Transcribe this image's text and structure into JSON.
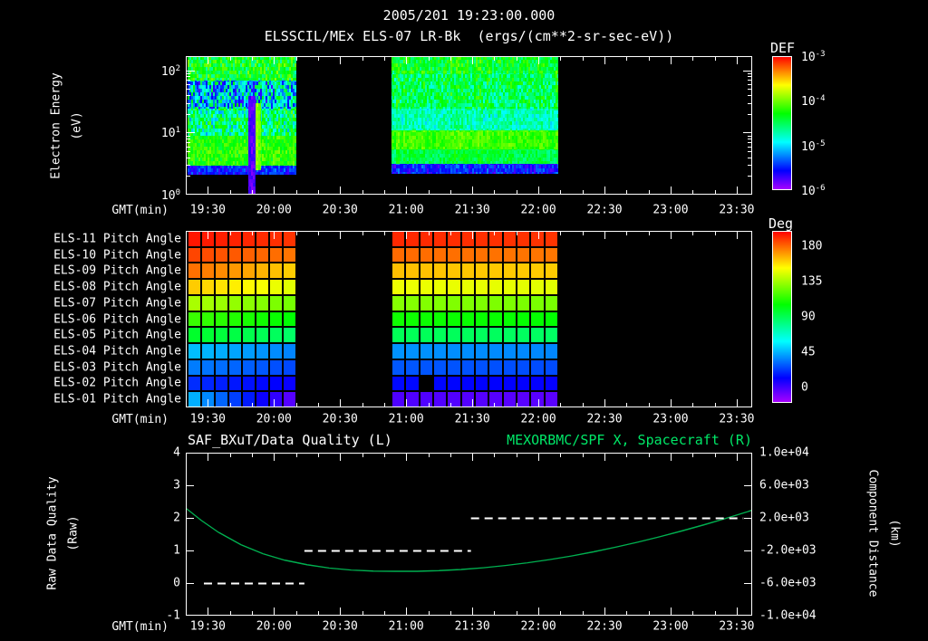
{
  "header": {
    "timestamp": "2005/201 19:23:00.000",
    "plot_title": "ELSSCIL/MEx ELS-07 LR-Bk  (ergs/(cm**2-sr-sec-eV))"
  },
  "colors": {
    "background": "#000000",
    "text": "#ffffff",
    "title_green": "#00e868",
    "curve_green": "#00b050",
    "quality_dash": "#ffffff",
    "axis": "#ffffff"
  },
  "x_axis": {
    "label": "GMT(min)",
    "tick_labels": [
      "19:30",
      "20:00",
      "20:30",
      "21:00",
      "21:30",
      "22:00",
      "22:30",
      "23:00",
      "23:30"
    ],
    "tick_hours": [
      19.5,
      20.0,
      20.5,
      21.0,
      21.5,
      22.0,
      22.5,
      23.0,
      23.5
    ],
    "range_hours": [
      19.333,
      23.617
    ]
  },
  "chart_data": [
    {
      "type": "heatmap",
      "name": "electron-energy-spectrogram",
      "ylabel_lines": [
        "Electron Energy",
        "(eV)"
      ],
      "y_scale": "log",
      "y_range_ev": [
        1,
        170
      ],
      "y_tick_exponents": [
        2,
        1,
        0
      ],
      "colorbar": {
        "label": "DEF",
        "tick_exponents": [
          -3,
          -4,
          -5,
          -6
        ],
        "units": "ergs/(cm**2-sr-sec-eV)"
      },
      "blocks": [
        {
          "t_start": 19.35,
          "t_end": 20.17,
          "bands": [
            {
              "e_min": 70,
              "e_max": 170,
              "v": 0.56,
              "noise": 0.13
            },
            {
              "e_min": 25,
              "e_max": 70,
              "v": 0.33,
              "noise": 0.24
            },
            {
              "e_min": 9,
              "e_max": 25,
              "v": 0.47,
              "noise": 0.18
            },
            {
              "e_min": 3.0,
              "e_max": 9,
              "v": 0.6,
              "noise": 0.07
            },
            {
              "e_min": 2.1,
              "e_max": 3.0,
              "v": 0.17,
              "noise": 0.08
            }
          ],
          "features": [
            {
              "type": "dark_column",
              "t0": 19.8,
              "t1": 19.86,
              "e_min": 1,
              "e_max": 40,
              "v": 0.07
            },
            {
              "type": "bright_column",
              "t0": 19.86,
              "t1": 19.9,
              "e_min": 2.5,
              "e_max": 30,
              "v": 0.67
            }
          ]
        },
        {
          "t_start": 20.89,
          "t_end": 22.15,
          "bands": [
            {
              "e_min": 90,
              "e_max": 170,
              "v": 0.55,
              "noise": 0.1
            },
            {
              "e_min": 25,
              "e_max": 90,
              "v": 0.5,
              "noise": 0.12
            },
            {
              "e_min": 11,
              "e_max": 25,
              "v": 0.42,
              "noise": 0.08
            },
            {
              "e_min": 5.5,
              "e_max": 11,
              "v": 0.62,
              "noise": 0.05
            },
            {
              "e_min": 3.2,
              "e_max": 5.5,
              "v": 0.52,
              "noise": 0.06
            },
            {
              "e_min": 2.2,
              "e_max": 3.2,
              "v": 0.16,
              "noise": 0.08
            }
          ],
          "features": []
        }
      ]
    },
    {
      "type": "heatmap",
      "name": "pitch-angle-panels",
      "colorbar": {
        "label": "Deg",
        "ticks": [
          180,
          135,
          90,
          45,
          0
        ],
        "range": [
          0,
          180
        ]
      },
      "cell_minutes": 6.5,
      "blocks": [
        {
          "t_start": 19.35,
          "t_end": 20.17
        },
        {
          "t_start": 20.89,
          "t_end": 22.15
        }
      ],
      "rows": [
        {
          "label": "ELS-11 Pitch Angle",
          "angles_block1": [
            177,
            172
          ],
          "angles_block2": [
            174,
            172
          ]
        },
        {
          "label": "ELS-10 Pitch Angle",
          "angles_block1": [
            170,
            162
          ],
          "angles_block2": [
            164,
            162
          ]
        },
        {
          "label": "ELS-09 Pitch Angle",
          "angles_block1": [
            164,
            148
          ],
          "angles_block2": [
            151,
            149
          ]
        },
        {
          "label": "ELS-08 Pitch Angle",
          "angles_block1": [
            150,
            136
          ],
          "angles_block2": [
            139,
            137
          ]
        },
        {
          "label": "ELS-07 Pitch Angle",
          "angles_block1": [
            129,
            120
          ],
          "angles_block2": [
            123,
            121
          ]
        },
        {
          "label": "ELS-06 Pitch Angle",
          "angles_block1": [
            112,
            102
          ],
          "angles_block2": [
            105,
            103
          ]
        },
        {
          "label": "ELS-05 Pitch Angle",
          "angles_block1": [
            97,
            87
          ],
          "angles_block2": [
            90,
            88
          ]
        },
        {
          "label": "ELS-04 Pitch Angle",
          "angles_block1": [
            55,
            45
          ],
          "angles_block2": [
            48,
            46
          ]
        },
        {
          "label": "ELS-03 Pitch Angle",
          "angles_block1": [
            45,
            36
          ],
          "angles_block2": [
            39,
            37
          ]
        },
        {
          "label": "ELS-02 Pitch Angle",
          "angles_block1": [
            33,
            24
          ],
          "angles_block2": [
            27,
            25
          ]
        },
        {
          "label": "ELS-01 Pitch Angle",
          "angles_block1": [
            55,
            10
          ],
          "angles_block2": [
            14,
            12
          ]
        }
      ],
      "missing_cells": [
        {
          "row_label": "ELS-02 Pitch Angle",
          "t_hours": 21.12
        }
      ]
    },
    {
      "type": "line",
      "name": "quality-and-spacecraft-distance",
      "title_left": "SAF_BXuT/Data Quality (L)",
      "title_right": "MEXORBMC/SPF X, Spacecraft (R)",
      "ylabel_left_lines": [
        "Raw Data Quality",
        "(Raw)"
      ],
      "ylabel_right_lines": [
        "Component Distance",
        "(km)"
      ],
      "y_left": {
        "ticks": [
          4,
          3,
          2,
          1,
          0,
          -1
        ],
        "range": [
          -1,
          4
        ]
      },
      "y_right": {
        "tick_labels": [
          "1.0e+04",
          "6.0e+03",
          "2.0e+03",
          "-2.0e+03",
          "-6.0e+03",
          "-1.0e+04"
        ],
        "range": [
          -10000,
          10000
        ]
      },
      "series": [
        {
          "name": "spacecraft-x-distance-km",
          "axis": "right",
          "style": "solid",
          "points": [
            [
              19.333,
              3200
            ],
            [
              19.45,
              1700
            ],
            [
              19.583,
              200
            ],
            [
              19.75,
              -1300
            ],
            [
              19.917,
              -2400
            ],
            [
              20.083,
              -3200
            ],
            [
              20.25,
              -3750
            ],
            [
              20.417,
              -4150
            ],
            [
              20.583,
              -4400
            ],
            [
              20.75,
              -4520
            ],
            [
              20.917,
              -4560
            ],
            [
              21.083,
              -4550
            ],
            [
              21.25,
              -4470
            ],
            [
              21.417,
              -4330
            ],
            [
              21.583,
              -4120
            ],
            [
              21.75,
              -3850
            ],
            [
              21.917,
              -3520
            ],
            [
              22.083,
              -3130
            ],
            [
              22.25,
              -2680
            ],
            [
              22.417,
              -2170
            ],
            [
              22.583,
              -1600
            ],
            [
              22.75,
              -980
            ],
            [
              22.917,
              -320
            ],
            [
              23.083,
              390
            ],
            [
              23.25,
              1140
            ],
            [
              23.417,
              1930
            ],
            [
              23.583,
              2760
            ],
            [
              23.617,
              2950
            ]
          ]
        },
        {
          "name": "raw-data-quality",
          "axis": "left",
          "style": "dashed",
          "segments": [
            {
              "value": 0,
              "t0": 19.47,
              "t1": 20.23
            },
            {
              "value": 1,
              "t0": 20.23,
              "t1": 21.49
            },
            {
              "value": 2,
              "t0": 21.49,
              "t1": 23.55
            }
          ]
        }
      ]
    }
  ]
}
